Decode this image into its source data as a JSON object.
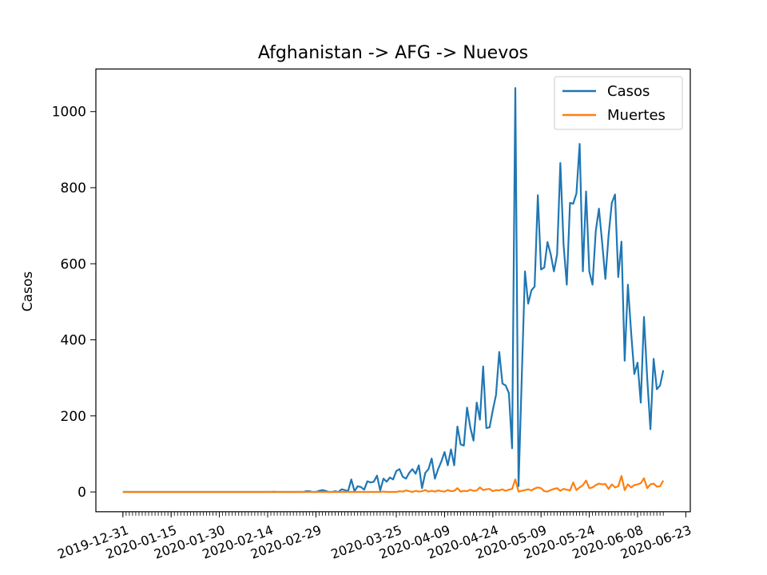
{
  "chart_data": {
    "type": "line",
    "title": "Afghanistan -> AFG -> Nuevos",
    "xlabel": "",
    "ylabel": "Casos",
    "x_axis_type": "date",
    "x_tick_labels": [
      "2019-12-31",
      "2020-01-15",
      "2020-01-30",
      "2020-02-14",
      "2020-02-29",
      "2020-03-25",
      "2020-04-09",
      "2020-04-24",
      "2020-05-09",
      "2020-05-24",
      "2020-06-08",
      "2020-06-23"
    ],
    "y_ticks": [
      0,
      200,
      400,
      600,
      800,
      1000
    ],
    "ylim": [
      -52,
      1112
    ],
    "grid": false,
    "legend_position": "top-right",
    "series": [
      {
        "name": "Casos",
        "color": "#1f77b4",
        "points": [
          [
            "2019-12-31",
            0
          ],
          [
            "2020-02-25",
            0
          ],
          [
            "2020-02-26",
            2
          ],
          [
            "2020-02-27",
            2
          ],
          [
            "2020-02-28",
            0
          ],
          [
            "2020-02-29",
            0
          ],
          [
            "2020-03-01",
            3
          ],
          [
            "2020-03-02",
            5
          ],
          [
            "2020-03-03",
            3
          ],
          [
            "2020-03-04",
            0
          ],
          [
            "2020-03-05",
            0
          ],
          [
            "2020-03-06",
            2
          ],
          [
            "2020-03-07",
            0
          ],
          [
            "2020-03-08",
            7
          ],
          [
            "2020-03-09",
            5
          ],
          [
            "2020-03-10",
            2
          ],
          [
            "2020-03-11",
            33
          ],
          [
            "2020-03-12",
            2
          ],
          [
            "2020-03-13",
            15
          ],
          [
            "2020-03-14",
            13
          ],
          [
            "2020-03-15",
            6
          ],
          [
            "2020-03-16",
            28
          ],
          [
            "2020-03-17",
            25
          ],
          [
            "2020-03-18",
            27
          ],
          [
            "2020-03-19",
            43
          ],
          [
            "2020-03-20",
            4
          ],
          [
            "2020-03-21",
            35
          ],
          [
            "2020-03-22",
            27
          ],
          [
            "2020-03-23",
            38
          ],
          [
            "2020-03-24",
            33
          ],
          [
            "2020-03-25",
            55
          ],
          [
            "2020-03-26",
            60
          ],
          [
            "2020-03-27",
            40
          ],
          [
            "2020-03-28",
            35
          ],
          [
            "2020-03-29",
            50
          ],
          [
            "2020-03-30",
            60
          ],
          [
            "2020-03-31",
            48
          ],
          [
            "2020-04-01",
            70
          ],
          [
            "2020-04-02",
            10
          ],
          [
            "2020-04-03",
            50
          ],
          [
            "2020-04-04",
            60
          ],
          [
            "2020-04-05",
            88
          ],
          [
            "2020-04-06",
            35
          ],
          [
            "2020-04-07",
            60
          ],
          [
            "2020-04-08",
            80
          ],
          [
            "2020-04-09",
            105
          ],
          [
            "2020-04-10",
            70
          ],
          [
            "2020-04-11",
            112
          ],
          [
            "2020-04-12",
            70
          ],
          [
            "2020-04-13",
            172
          ],
          [
            "2020-04-14",
            125
          ],
          [
            "2020-04-15",
            122
          ],
          [
            "2020-04-16",
            222
          ],
          [
            "2020-04-17",
            170
          ],
          [
            "2020-04-18",
            135
          ],
          [
            "2020-04-19",
            235
          ],
          [
            "2020-04-20",
            190
          ],
          [
            "2020-04-21",
            330
          ],
          [
            "2020-04-22",
            168
          ],
          [
            "2020-04-23",
            170
          ],
          [
            "2020-04-24",
            215
          ],
          [
            "2020-04-25",
            255
          ],
          [
            "2020-04-26",
            368
          ],
          [
            "2020-04-27",
            285
          ],
          [
            "2020-04-28",
            280
          ],
          [
            "2020-04-29",
            260
          ],
          [
            "2020-04-30",
            115
          ],
          [
            "2020-05-01",
            1062
          ],
          [
            "2020-05-02",
            15
          ],
          [
            "2020-05-03",
            300
          ],
          [
            "2020-05-04",
            580
          ],
          [
            "2020-05-05",
            495
          ],
          [
            "2020-05-06",
            530
          ],
          [
            "2020-05-07",
            540
          ],
          [
            "2020-05-08",
            780
          ],
          [
            "2020-05-09",
            585
          ],
          [
            "2020-05-10",
            590
          ],
          [
            "2020-05-11",
            657
          ],
          [
            "2020-05-12",
            625
          ],
          [
            "2020-05-13",
            580
          ],
          [
            "2020-05-14",
            625
          ],
          [
            "2020-05-15",
            865
          ],
          [
            "2020-05-16",
            650
          ],
          [
            "2020-05-17",
            545
          ],
          [
            "2020-05-18",
            760
          ],
          [
            "2020-05-19",
            758
          ],
          [
            "2020-05-20",
            785
          ],
          [
            "2020-05-21",
            915
          ],
          [
            "2020-05-22",
            580
          ],
          [
            "2020-05-23",
            790
          ],
          [
            "2020-05-24",
            580
          ],
          [
            "2020-05-25",
            545
          ],
          [
            "2020-05-26",
            685
          ],
          [
            "2020-05-27",
            745
          ],
          [
            "2020-05-28",
            655
          ],
          [
            "2020-05-29",
            560
          ],
          [
            "2020-05-30",
            675
          ],
          [
            "2020-05-31",
            760
          ],
          [
            "2020-06-01",
            782
          ],
          [
            "2020-06-02",
            565
          ],
          [
            "2020-06-03",
            658
          ],
          [
            "2020-06-04",
            345
          ],
          [
            "2020-06-05",
            545
          ],
          [
            "2020-06-06",
            420
          ],
          [
            "2020-06-07",
            310
          ],
          [
            "2020-06-08",
            340
          ],
          [
            "2020-06-09",
            235
          ],
          [
            "2020-06-10",
            460
          ],
          [
            "2020-06-11",
            300
          ],
          [
            "2020-06-12",
            165
          ],
          [
            "2020-06-13",
            350
          ],
          [
            "2020-06-14",
            270
          ],
          [
            "2020-06-15",
            280
          ],
          [
            "2020-06-16",
            320
          ]
        ]
      },
      {
        "name": "Muertes",
        "color": "#ff7f0e",
        "points": [
          [
            "2019-12-31",
            0
          ],
          [
            "2020-02-15",
            0
          ],
          [
            "2020-02-16",
            1
          ],
          [
            "2020-02-17",
            0
          ],
          [
            "2020-03-20",
            0
          ],
          [
            "2020-03-21",
            1
          ],
          [
            "2020-03-22",
            0
          ],
          [
            "2020-03-25",
            0
          ],
          [
            "2020-03-26",
            2
          ],
          [
            "2020-03-27",
            1
          ],
          [
            "2020-03-28",
            4
          ],
          [
            "2020-03-29",
            2
          ],
          [
            "2020-03-30",
            0
          ],
          [
            "2020-03-31",
            3
          ],
          [
            "2020-04-01",
            1
          ],
          [
            "2020-04-02",
            2
          ],
          [
            "2020-04-03",
            5
          ],
          [
            "2020-04-04",
            1
          ],
          [
            "2020-04-05",
            3
          ],
          [
            "2020-04-06",
            1
          ],
          [
            "2020-04-07",
            4
          ],
          [
            "2020-04-08",
            2
          ],
          [
            "2020-04-09",
            1
          ],
          [
            "2020-04-10",
            5
          ],
          [
            "2020-04-11",
            2
          ],
          [
            "2020-04-12",
            3
          ],
          [
            "2020-04-13",
            10
          ],
          [
            "2020-04-14",
            1
          ],
          [
            "2020-04-15",
            3
          ],
          [
            "2020-04-16",
            2
          ],
          [
            "2020-04-17",
            6
          ],
          [
            "2020-04-18",
            3
          ],
          [
            "2020-04-19",
            4
          ],
          [
            "2020-04-20",
            12
          ],
          [
            "2020-04-21",
            5
          ],
          [
            "2020-04-22",
            7
          ],
          [
            "2020-04-23",
            8
          ],
          [
            "2020-04-24",
            2
          ],
          [
            "2020-04-25",
            5
          ],
          [
            "2020-04-26",
            4
          ],
          [
            "2020-04-27",
            7
          ],
          [
            "2020-04-28",
            3
          ],
          [
            "2020-04-29",
            6
          ],
          [
            "2020-04-30",
            8
          ],
          [
            "2020-05-01",
            33
          ],
          [
            "2020-05-02",
            1
          ],
          [
            "2020-05-03",
            3
          ],
          [
            "2020-05-04",
            5
          ],
          [
            "2020-05-05",
            7
          ],
          [
            "2020-05-06",
            4
          ],
          [
            "2020-05-07",
            9
          ],
          [
            "2020-05-08",
            12
          ],
          [
            "2020-05-09",
            10
          ],
          [
            "2020-05-10",
            2
          ],
          [
            "2020-05-11",
            1
          ],
          [
            "2020-05-12",
            5
          ],
          [
            "2020-05-13",
            8
          ],
          [
            "2020-05-14",
            10
          ],
          [
            "2020-05-15",
            3
          ],
          [
            "2020-05-16",
            8
          ],
          [
            "2020-05-17",
            6
          ],
          [
            "2020-05-18",
            4
          ],
          [
            "2020-05-19",
            25
          ],
          [
            "2020-05-20",
            5
          ],
          [
            "2020-05-21",
            12
          ],
          [
            "2020-05-22",
            18
          ],
          [
            "2020-05-23",
            30
          ],
          [
            "2020-05-24",
            10
          ],
          [
            "2020-05-25",
            12
          ],
          [
            "2020-05-26",
            18
          ],
          [
            "2020-05-27",
            22
          ],
          [
            "2020-05-28",
            20
          ],
          [
            "2020-05-29",
            21
          ],
          [
            "2020-05-30",
            8
          ],
          [
            "2020-05-31",
            20
          ],
          [
            "2020-06-01",
            12
          ],
          [
            "2020-06-02",
            15
          ],
          [
            "2020-06-03",
            42
          ],
          [
            "2020-06-04",
            5
          ],
          [
            "2020-06-05",
            20
          ],
          [
            "2020-06-06",
            12
          ],
          [
            "2020-06-07",
            18
          ],
          [
            "2020-06-08",
            20
          ],
          [
            "2020-06-09",
            23
          ],
          [
            "2020-06-10",
            36
          ],
          [
            "2020-06-11",
            10
          ],
          [
            "2020-06-12",
            20
          ],
          [
            "2020-06-13",
            22
          ],
          [
            "2020-06-14",
            14
          ],
          [
            "2020-06-15",
            15
          ],
          [
            "2020-06-16",
            30
          ]
        ]
      }
    ]
  }
}
